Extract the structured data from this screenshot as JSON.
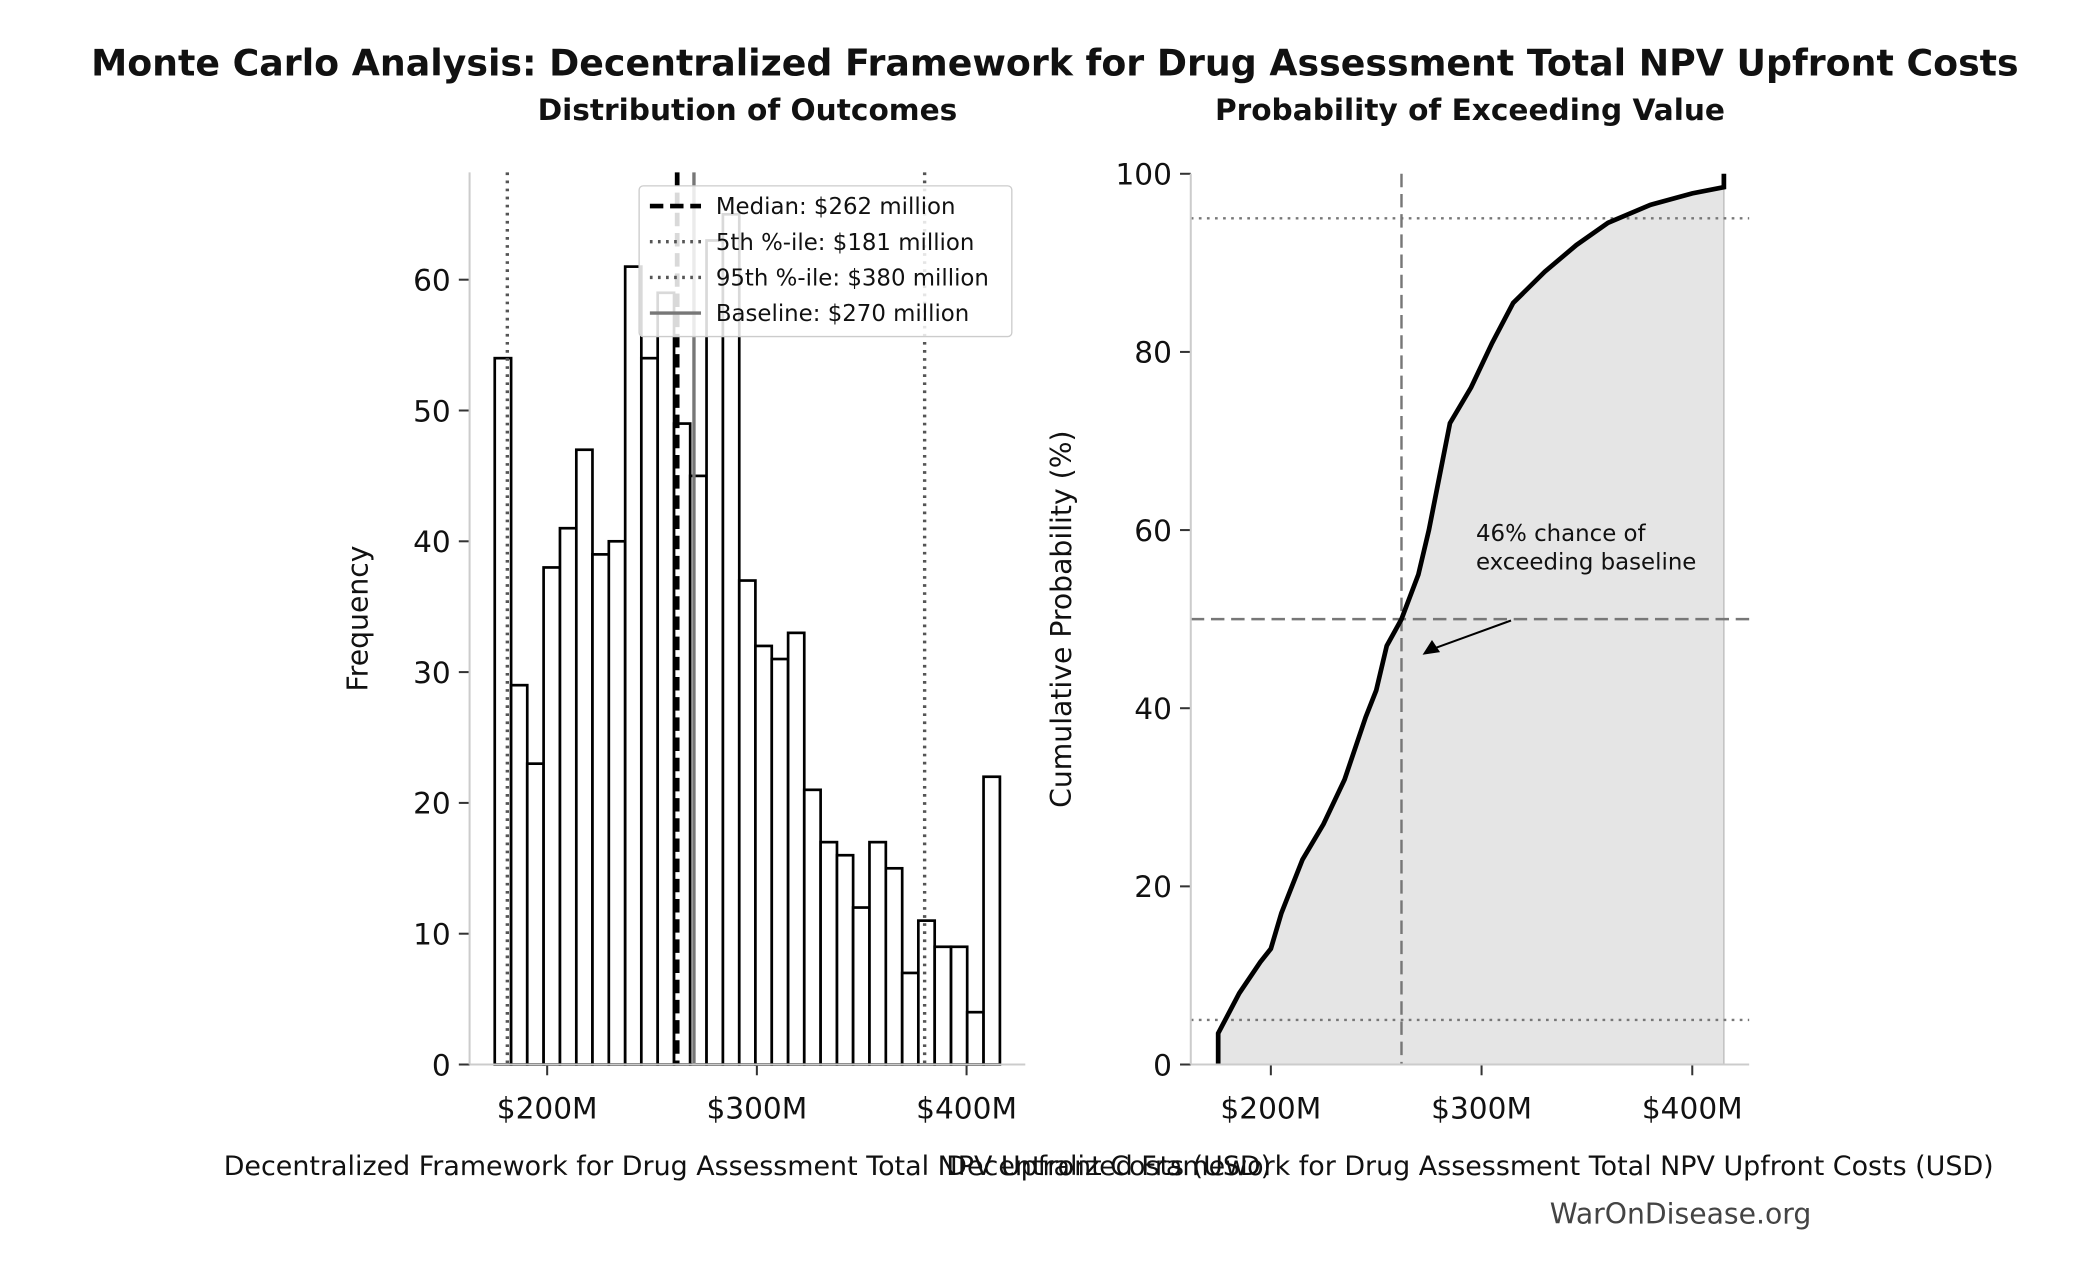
{
  "title": "Monte Carlo Analysis: Decentralized Framework for Drug Assessment Total NPV Upfront Costs",
  "source": "WarOnDisease.org",
  "chart_data": [
    {
      "type": "histogram",
      "subtitle": "Distribution of Outcomes",
      "xlabel": "Decentralized Framework for Drug Assessment Total NPV Upfront Costs (USD)",
      "ylabel": "Frequency",
      "bins": [
        175.0,
        182.8,
        190.5,
        198.3,
        206.1,
        213.9,
        221.6,
        229.4,
        237.2,
        244.9,
        252.7,
        260.5,
        268.2,
        276.0,
        283.8,
        291.6,
        299.3,
        307.1,
        314.9,
        322.6,
        330.4,
        338.2,
        345.9,
        353.7,
        361.5,
        369.3,
        377.0,
        384.8,
        392.6,
        400.3,
        408.1,
        415.9
      ],
      "values": [
        54,
        29,
        23,
        38,
        41,
        47,
        39,
        40,
        61,
        54,
        59,
        49,
        45,
        63,
        65,
        37,
        32,
        31,
        33,
        21,
        17,
        16,
        12,
        17,
        15,
        7,
        11,
        9,
        9,
        4,
        22
      ],
      "color": "#ffffff",
      "edgecolor": "#000000",
      "xlim": [
        163,
        428
      ],
      "ylim": [
        0,
        68.2
      ],
      "xticks": [
        {
          "value": 200,
          "label": "$200M"
        },
        {
          "value": 300,
          "label": "$300M"
        },
        {
          "value": 400,
          "label": "$400M"
        }
      ],
      "yticks": [
        0,
        10,
        20,
        30,
        40,
        50,
        60
      ],
      "legend": "upper right",
      "lines": [
        {
          "name": "Median: $262 million",
          "value": 262,
          "style": "dashed",
          "color": "#000000"
        },
        {
          "name": "5th %-ile: $181 million",
          "value": 181,
          "style": "dotted",
          "color": "#555555"
        },
        {
          "name": "95th %-ile: $380 million",
          "value": 380,
          "style": "dotted",
          "color": "#555555"
        },
        {
          "name": "Baseline: $270 million",
          "value": 270,
          "style": "solid",
          "color": "#777777"
        }
      ]
    },
    {
      "type": "line",
      "subtitle": "Probability of Exceeding Value",
      "xlabel": "Decentralized Framework for Drug Assessment Total NPV Upfront Costs (USD)",
      "ylabel": "Cumulative Probability (%)",
      "x": [
        175,
        175,
        185,
        195,
        200,
        205,
        210,
        215,
        225,
        235,
        245,
        250,
        255,
        262,
        270,
        275,
        280,
        285,
        295,
        305,
        315,
        330,
        345,
        360,
        380,
        400,
        415,
        415
      ],
      "values": [
        0,
        3.5,
        8,
        11.5,
        13,
        17,
        20,
        23,
        27,
        32,
        39,
        42,
        47,
        50,
        55,
        60,
        66,
        72,
        76,
        81,
        85.5,
        89,
        92,
        94.5,
        96.5,
        97.8,
        98.5,
        100
      ],
      "color": "#000000",
      "fill": "#e5e5e5",
      "xlim": [
        162,
        427
      ],
      "ylim": [
        0,
        100
      ],
      "xticks": [
        {
          "value": 200,
          "label": "$200M"
        },
        {
          "value": 300,
          "label": "$300M"
        },
        {
          "value": 400,
          "label": "$400M"
        }
      ],
      "yticks": [
        0,
        20,
        40,
        60,
        80,
        100
      ],
      "hlines": [
        {
          "value": 5,
          "style": "dotted"
        },
        {
          "value": 95,
          "style": "dotted"
        },
        {
          "value": 50,
          "style": "dashed"
        }
      ],
      "vlines": [
        {
          "value": 262,
          "style": "dashed"
        }
      ],
      "annotation": {
        "text": [
          "46% chance of",
          "exceeding baseline"
        ],
        "xy": [
          272,
          46
        ]
      }
    }
  ]
}
